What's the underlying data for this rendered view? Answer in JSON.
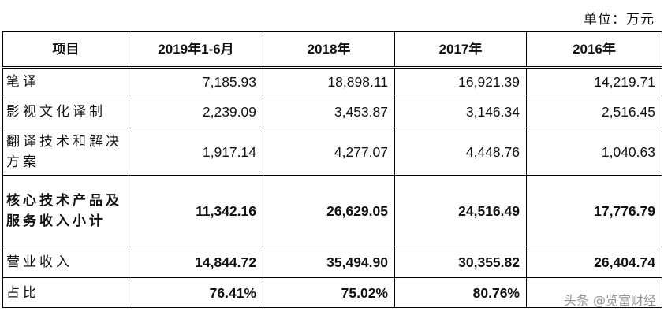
{
  "unit_label": "单位：万元",
  "table": {
    "headers": [
      "项目",
      "2019年1-6月",
      "2018年",
      "2017年",
      "2016年"
    ],
    "rows": [
      {
        "label": "笔译",
        "values": [
          "7,185.93",
          "18,898.11",
          "16,921.39",
          "14,219.71"
        ],
        "bold": false
      },
      {
        "label": "影视文化译制",
        "values": [
          "2,239.09",
          "3,453.87",
          "3,146.34",
          "2,516.45"
        ],
        "bold": false
      },
      {
        "label": "翻译技术和解决方案",
        "values": [
          "1,917.14",
          "4,277.07",
          "4,448.76",
          "1,040.63"
        ],
        "bold": false
      },
      {
        "label": "核心技术产品及服务收入小计",
        "values": [
          "11,342.16",
          "26,629.05",
          "24,516.49",
          "17,776.79"
        ],
        "bold": true
      },
      {
        "label": "营业收入",
        "values": [
          "14,844.72",
          "35,494.90",
          "30,355.82",
          "26,404.74"
        ],
        "bold": false
      },
      {
        "label": "占比",
        "values": [
          "76.41%",
          "75.02%",
          "80.76%",
          ""
        ],
        "bold": false
      }
    ]
  },
  "watermark": {
    "prefix": "头条 @",
    "name": "览富财经"
  }
}
